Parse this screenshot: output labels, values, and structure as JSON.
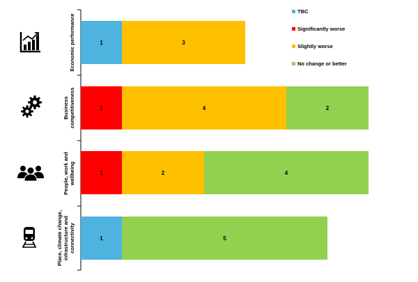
{
  "chart_data": {
    "type": "bar",
    "orientation": "horizontal",
    "stacked": true,
    "categories": [
      "Economic performance",
      "Business competitiveness",
      "People, work and wellbeing",
      "Place, climate change, infrastructure and connectivity"
    ],
    "category_icons": [
      "bar-chart-icon",
      "gears-icon",
      "people-icon",
      "train-icon"
    ],
    "series": [
      {
        "name": "TBC",
        "color": "#4fb3e0",
        "values": [
          1,
          0,
          0,
          1
        ]
      },
      {
        "name": "Significantly worse",
        "color": "#ff0000",
        "values": [
          0,
          1,
          1,
          0
        ]
      },
      {
        "name": "Slightly worse",
        "color": "#ffc000",
        "values": [
          3,
          4,
          2,
          0
        ]
      },
      {
        "name": "No change or better",
        "color": "#92d050",
        "values": [
          0,
          2,
          4,
          5
        ]
      }
    ],
    "xlim": [
      0,
      7
    ],
    "legend_position": "top-right",
    "grid": false
  }
}
